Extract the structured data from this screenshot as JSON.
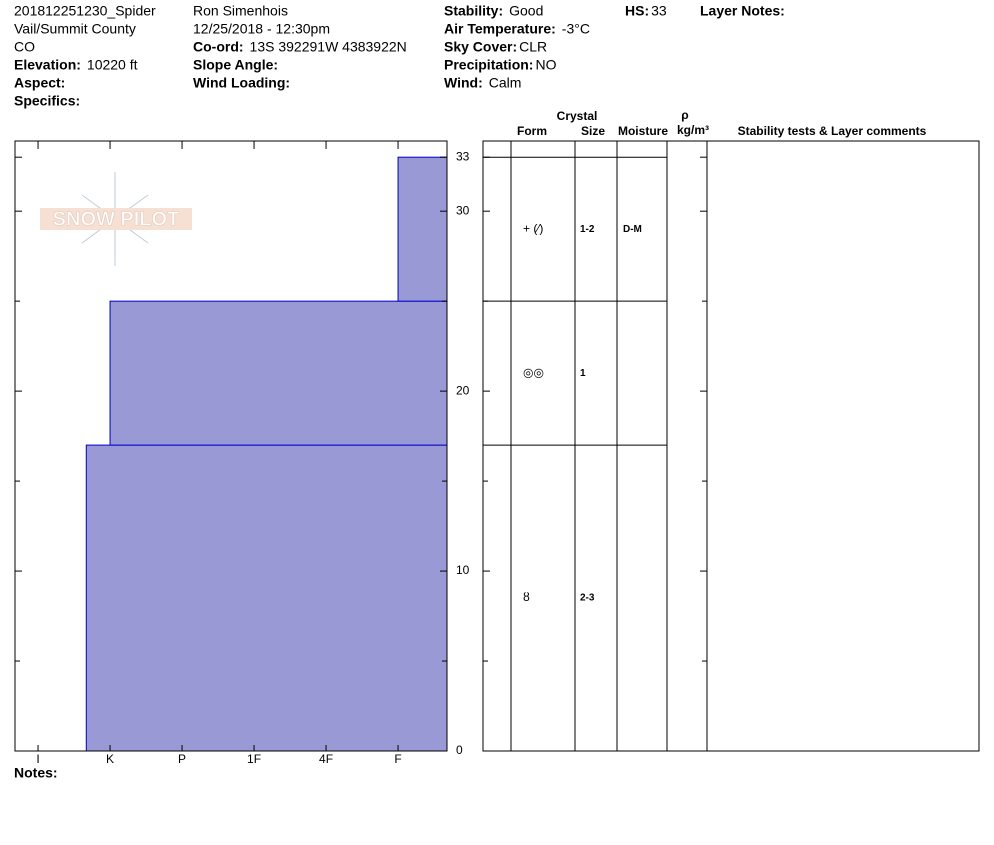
{
  "header": {
    "columns": [
      [
        {
          "text": "201812251230_Spider"
        },
        {
          "text": "Vail/Summit County"
        },
        {
          "text": "CO"
        },
        {
          "label": "Elevation:",
          "value": "10220 ft"
        },
        {
          "label": "Aspect:"
        },
        {
          "label": "Specifics:"
        }
      ],
      [
        {
          "text": "Ron Simenhois"
        },
        {
          "text": "12/25/2018 - 12:30pm"
        },
        {
          "label": "Co-ord:",
          "value": "13S 392291W 4383922N"
        },
        {
          "label": "Slope Angle:"
        },
        {
          "label": "Wind Loading:"
        }
      ],
      [
        {
          "label": "Stability:",
          "value": "Good"
        },
        {
          "label": "Air Temperature:",
          "value": "-3°C"
        },
        {
          "label": "Sky Cover:",
          "value": "CLR"
        },
        {
          "label": "Precipitation:",
          "value": "NO"
        },
        {
          "label": "Wind:",
          "value": "Calm"
        }
      ],
      [
        {
          "label": "HS:",
          "value": "33"
        }
      ],
      [
        {
          "label": "Layer Notes:"
        }
      ]
    ],
    "notes": "Notes:",
    "logo_text": "SNOW PILOT"
  },
  "table": {
    "crystal": "Crystal",
    "form": "Form",
    "size": "Size",
    "moisture": "Moisture",
    "rho": "ρ",
    "density_unit": "kg/m³",
    "comments": "Stability tests & Layer comments"
  },
  "chart_data": {
    "type": "bar",
    "layers": [
      {
        "bottom": 0,
        "top": 17,
        "hardness": 5.33,
        "form": "ȣ",
        "size": "2-3"
      },
      {
        "bottom": 17,
        "top": 25,
        "hardness": 5,
        "form": "◎◎",
        "size": "1"
      },
      {
        "bottom": 25,
        "top": 33,
        "hardness": 1,
        "form": "+ (⁄)",
        "size": "1-2",
        "moisture": "D-M"
      }
    ],
    "color": "#9999d6",
    "ylim": [
      0,
      33.9
    ],
    "yticks": [
      0,
      10,
      20,
      30,
      33
    ],
    "minor_yticks": [
      5,
      15,
      25
    ],
    "xlim": [
      6.32,
      0.32
    ],
    "xticks": [
      {
        "value": 6,
        "label": "I"
      },
      {
        "value": 5,
        "label": "K"
      },
      {
        "value": 4,
        "label": "P"
      },
      {
        "value": 3,
        "label": "1F"
      },
      {
        "value": 2,
        "label": "4F"
      },
      {
        "value": 1,
        "label": "F"
      }
    ]
  }
}
